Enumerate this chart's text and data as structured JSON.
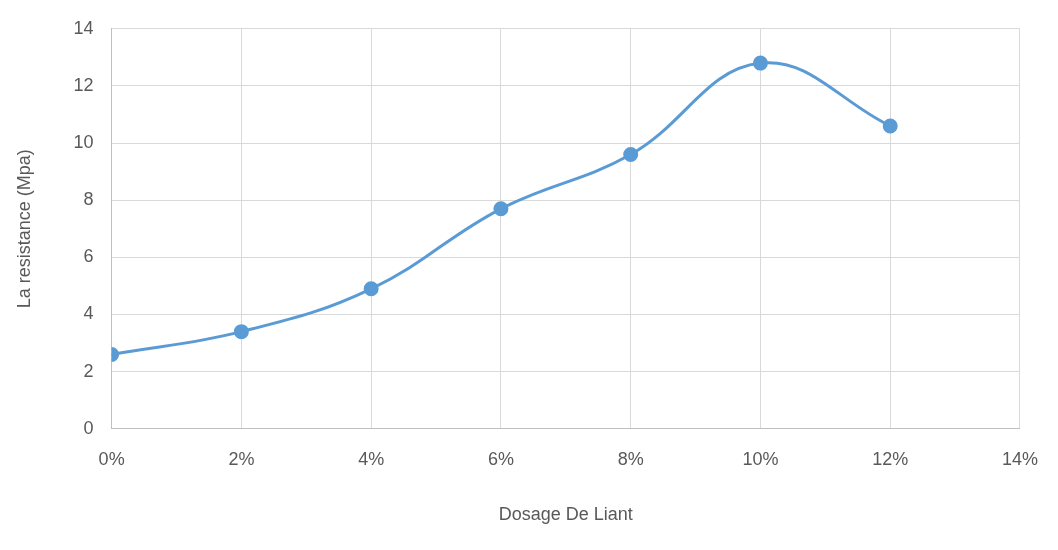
{
  "chart_data": {
    "type": "line",
    "xlabel": "Dosage De Liant",
    "ylabel": "La resistance (Mpa)",
    "x": [
      0,
      2,
      4,
      6,
      8,
      10,
      12
    ],
    "series": [
      {
        "color": "#5b9bd5",
        "values": [
          2.6,
          3.4,
          4.9,
          7.7,
          9.6,
          12.8,
          10.6
        ]
      }
    ],
    "xlim": [
      0,
      14
    ],
    "xticks": [
      {
        "value": 0,
        "label": "0%"
      },
      {
        "value": 2,
        "label": "2%"
      },
      {
        "value": 4,
        "label": "4%"
      },
      {
        "value": 6,
        "label": "6%"
      },
      {
        "value": 8,
        "label": "8%"
      },
      {
        "value": 10,
        "label": "10%"
      },
      {
        "value": 12,
        "label": "12%"
      },
      {
        "value": 14,
        "label": "14%"
      }
    ],
    "ylim": [
      0,
      14
    ],
    "yticks": [
      0,
      2,
      4,
      6,
      8,
      10,
      12,
      14
    ],
    "grid": true,
    "marker": "circle",
    "line_style": "solid"
  }
}
